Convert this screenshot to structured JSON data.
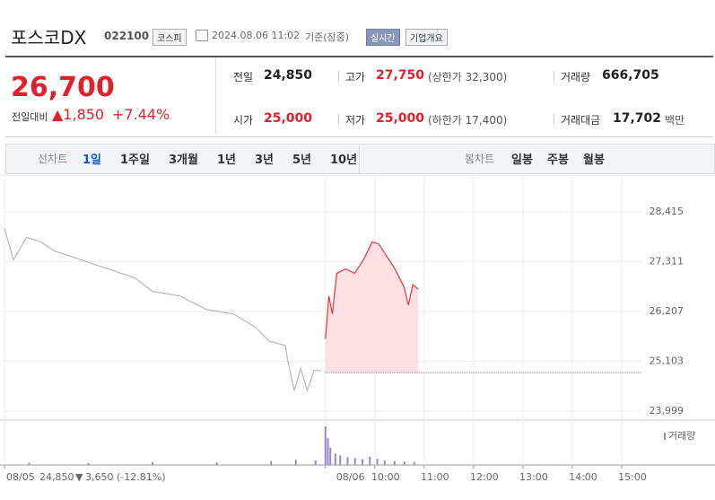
{
  "header": {
    "title": "포스코DX",
    "code": "022100",
    "market": "코스피",
    "datetime": "2024.08.06 11:02",
    "basis": "기준(장중)",
    "realtime": "실시간",
    "company": "기업개요"
  },
  "summary": {
    "price": "26,700",
    "change_label": "전일대비",
    "change": "▲1,850",
    "change_rate": "+7.44%",
    "stats": [
      {
        "label": "전일",
        "value": "24,850"
      },
      {
        "label": "고가",
        "value": "27,750",
        "extra": "(상한가 32,300)"
      },
      {
        "label": "거래량",
        "value": "666,705"
      },
      {
        "label": "시가",
        "value": "25,000"
      },
      {
        "label": "저가",
        "value": "25,000",
        "extra": "(하한가 17,400)"
      },
      {
        "label": "거래대금",
        "value": "17,702",
        "extra": "백만"
      }
    ]
  },
  "tabs": {
    "line_label": "선차트",
    "line": [
      "1일",
      "1주일",
      "3개월",
      "1년",
      "3년",
      "5년",
      "10년"
    ],
    "candle_label": "봉차트",
    "candle": [
      "일봉",
      "주봉",
      "월봉"
    ]
  },
  "chart_data": {
    "type": "line",
    "xlim": [
      2.5,
      15.4
    ],
    "xticks": [
      {
        "value": 2.5,
        "label": "08/05"
      },
      {
        "value": 9,
        "label": "08/06"
      },
      {
        "value": 10,
        "label": "10:00"
      },
      {
        "value": 11,
        "label": "11:00"
      },
      {
        "value": 12,
        "label": "12:00"
      },
      {
        "value": 13,
        "label": "13:00"
      },
      {
        "value": 14,
        "label": "14:00"
      },
      {
        "value": 15,
        "label": "15:00"
      }
    ],
    "ylim": [
      23800,
      28830
    ],
    "yticks": [
      {
        "value": 23999,
        "label": "23,999"
      },
      {
        "value": 25103,
        "label": "25,103"
      },
      {
        "value": 26207,
        "label": "26,207"
      },
      {
        "value": 27311,
        "label": "27,311"
      },
      {
        "value": 28415,
        "label": "28,415"
      }
    ],
    "grid": true,
    "prev_close": 24850,
    "series": [
      {
        "color": "#b8b8b8",
        "x": [
          2.5,
          2.68,
          2.95,
          3.23,
          3.5,
          4.05,
          4.59,
          5.14,
          5.5,
          6.05,
          6.59,
          7.14,
          7.59,
          7.86,
          8.19,
          8.23,
          8.37,
          8.5,
          8.63,
          8.77,
          8.91
        ],
        "values": [
          28050,
          27350,
          27850,
          27750,
          27550,
          27350,
          27150,
          26950,
          26650,
          26550,
          26250,
          26150,
          25850,
          25550,
          25450,
          25150,
          24450,
          24950,
          24450,
          24900,
          24900
        ]
      },
      {
        "color": "#e8323c",
        "fill": "#fde0e2",
        "x": [
          9.0,
          9.07,
          9.14,
          9.23,
          9.41,
          9.59,
          9.77,
          9.95,
          10.08,
          10.23,
          10.41,
          10.59,
          10.68,
          10.77,
          10.88
        ],
        "values": [
          25600,
          26550,
          26150,
          27050,
          27150,
          27050,
          27350,
          27750,
          27700,
          27450,
          27150,
          26750,
          26350,
          26800,
          26700
        ]
      }
    ],
    "volume": {
      "label": "거래량",
      "color": "#9a86c8",
      "ylim": [
        0,
        100
      ],
      "x": [
        3.0,
        4.2,
        5.5,
        6.8,
        7.9,
        8.4,
        8.8,
        9.0,
        9.05,
        9.1,
        9.2,
        9.3,
        9.45,
        9.6,
        9.75,
        9.9,
        10.05,
        10.2,
        10.4,
        10.6,
        10.8
      ],
      "values": [
        6,
        5,
        7,
        6,
        10,
        14,
        12,
        100,
        70,
        45,
        30,
        25,
        20,
        18,
        15,
        22,
        16,
        12,
        10,
        9,
        8
      ]
    },
    "footer": {
      "date": "08/05",
      "price": "24,850",
      "arrow": "▼",
      "change": "3,650",
      "rate": "(-12.81%)"
    }
  }
}
